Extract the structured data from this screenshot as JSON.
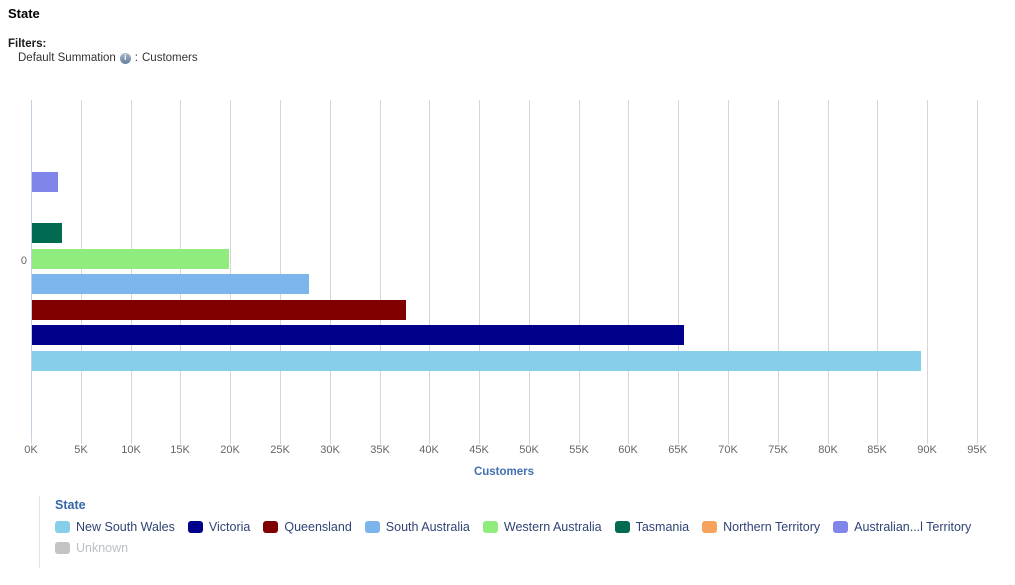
{
  "header": {
    "title": "State",
    "filters_label": "Filters:",
    "filter_name": "Default Summation",
    "filter_separator": ":",
    "filter_value": "Customers",
    "info_icon_glyph": "i"
  },
  "chart_data": {
    "type": "bar",
    "orientation": "horizontal",
    "title": "",
    "xlabel": "Customers",
    "ylabel": "",
    "categories": [
      "0"
    ],
    "xlim": [
      0,
      95000
    ],
    "grid": true,
    "x_ticks": [
      "0K",
      "5K",
      "10K",
      "15K",
      "20K",
      "25K",
      "30K",
      "35K",
      "40K",
      "45K",
      "50K",
      "55K",
      "60K",
      "65K",
      "70K",
      "75K",
      "80K",
      "85K",
      "90K",
      "95K"
    ],
    "legend_title": "State",
    "legend_position": "bottom",
    "series": [
      {
        "name": "New South Wales",
        "value": 89300,
        "color": "#87CEEB"
      },
      {
        "name": "Victoria",
        "value": 65500,
        "color": "#00008B"
      },
      {
        "name": "Queensland",
        "value": 37600,
        "color": "#800000"
      },
      {
        "name": "South Australia",
        "value": 27800,
        "color": "#7CB5EC"
      },
      {
        "name": "Western Australia",
        "value": 19800,
        "color": "#90ED7D"
      },
      {
        "name": "Tasmania",
        "value": 3000,
        "color": "#016B52"
      },
      {
        "name": "Northern Territory",
        "value": 0,
        "color": "#F7A35C"
      },
      {
        "name": "Australian...l Territory",
        "value": 2600,
        "color": "#8085E9"
      },
      {
        "name": "Unknown",
        "value": 0,
        "color": "#C3C3C3",
        "muted": true
      }
    ]
  }
}
